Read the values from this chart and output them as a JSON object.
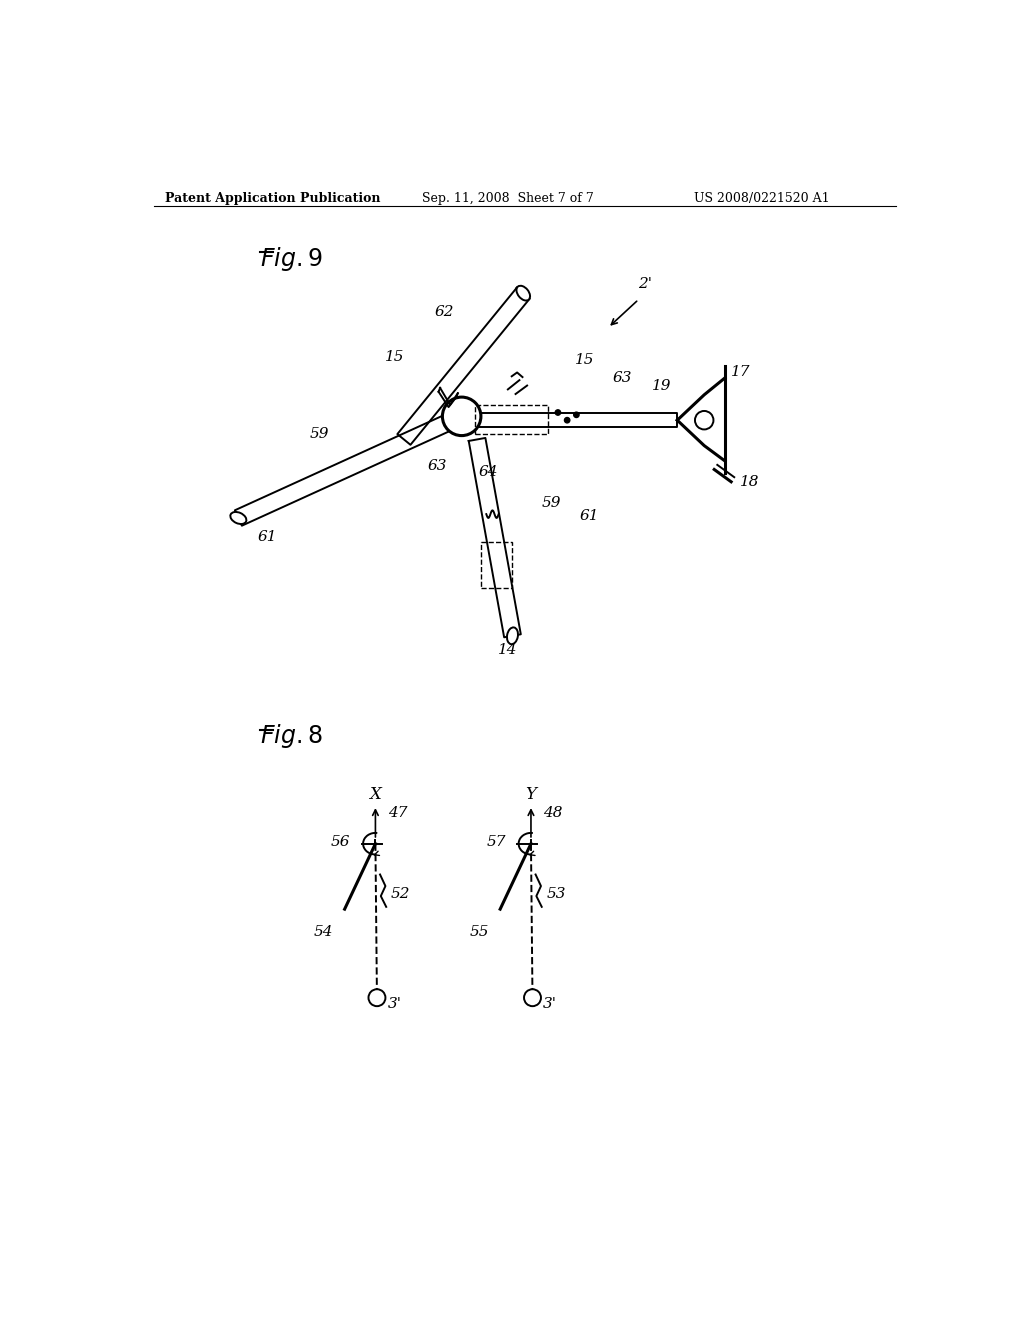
{
  "bg_color": "#ffffff",
  "header_left": "Patent Application Publication",
  "header_mid": "Sep. 11, 2008  Sheet 7 of 7",
  "header_right": "US 2008/0221520 A1"
}
